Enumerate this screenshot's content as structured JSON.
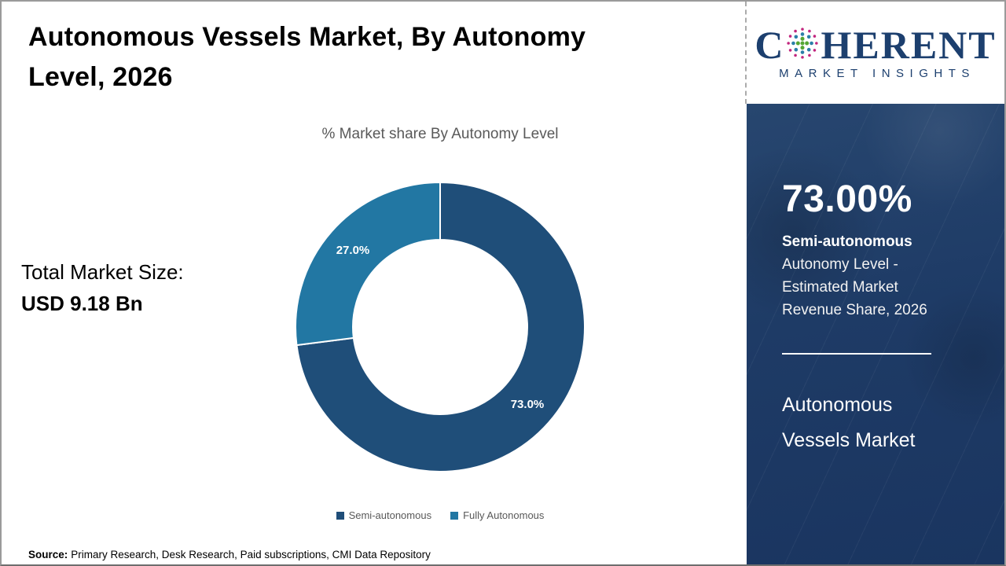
{
  "header": {
    "title": "Autonomous Vessels Market, By Autonomy Level, 2026"
  },
  "logo": {
    "word_start": "C",
    "word_end": "HERENT",
    "subtitle": "MARKET INSIGHTS",
    "navy": "#1c3f6e",
    "globe_green": "#55a633",
    "globe_teal": "#2b7fa8",
    "globe_magenta": "#c2267e"
  },
  "left_panel": {
    "total_label": "Total Market Size:",
    "total_value": "USD 9.18 Bn"
  },
  "chart_data": {
    "type": "pie",
    "subtype": "donut",
    "title": "% Market share By Autonomy Level",
    "categories": [
      "Semi-autonomous",
      "Fully Autonomous"
    ],
    "values": [
      73.0,
      27.0
    ],
    "slice_labels": [
      "73.0%",
      "27.0%"
    ],
    "colors": [
      "#1f4e79",
      "#2277a3"
    ],
    "start_angle": "top, clockwise",
    "legend_position": "bottom",
    "outer_radius_px": 184,
    "inner_radius_px": 111,
    "slice_label_color": "#ffffff"
  },
  "sidebar": {
    "bg_color": "#1e3b66",
    "stat_value": "73.00%",
    "stat_category": "Semi-autonomous",
    "stat_description": "Autonomy Level - Estimated Market Revenue Share, 2026",
    "market_name": "Autonomous Vessels Market"
  },
  "footer": {
    "source_label": "Source:",
    "source_text": "Primary Research, Desk Research, Paid subscriptions, CMI Data Repository"
  }
}
